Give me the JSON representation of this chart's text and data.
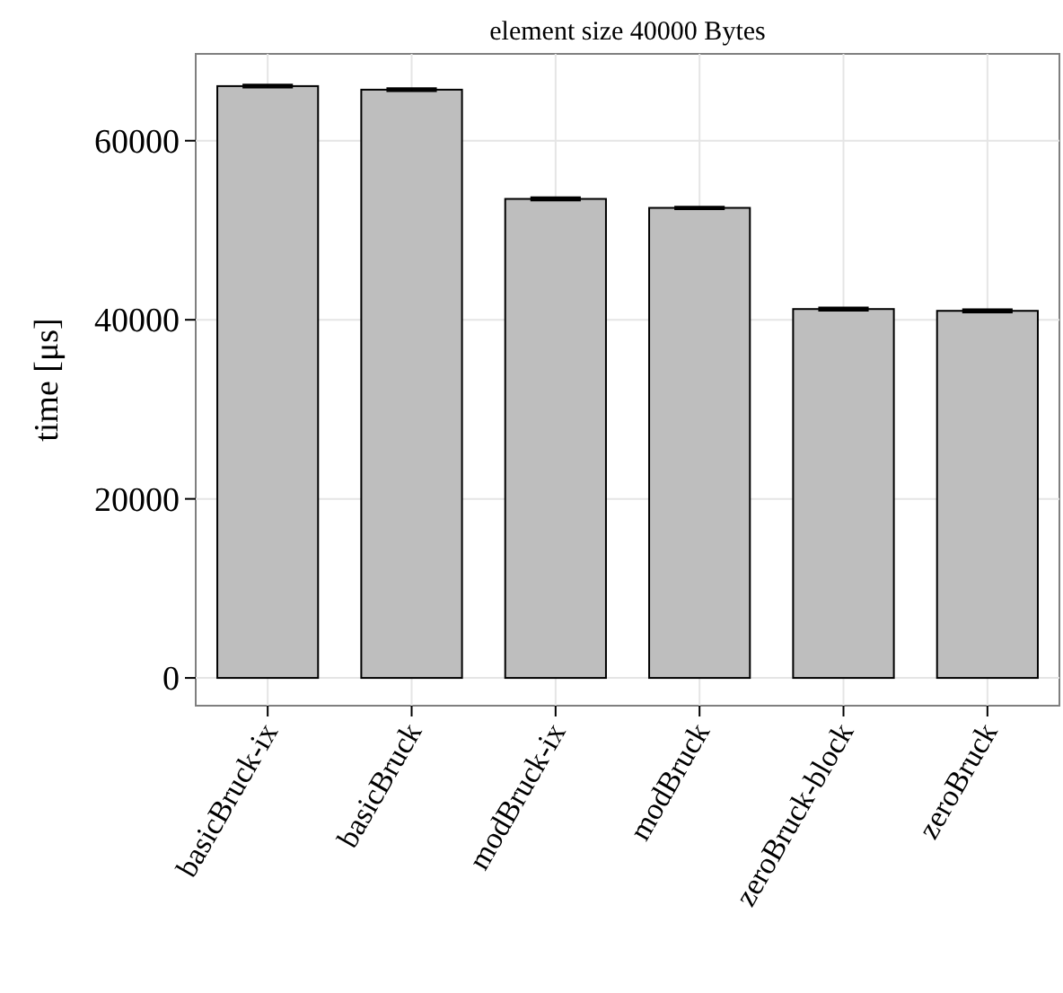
{
  "chart_data": {
    "type": "bar",
    "title": "element size 40000 Bytes",
    "ylabel": "time [μs]",
    "categories": [
      "basicBruck-ix",
      "basicBruck",
      "modBruck-ix",
      "modBruck",
      "zeroBruck-block",
      "zeroBruck"
    ],
    "values": [
      66100,
      65700,
      53500,
      52500,
      41200,
      41000
    ],
    "errors": [
      150,
      150,
      150,
      120,
      150,
      150
    ],
    "color": "#bebebe",
    "ylim": [
      -3100,
      69700
    ],
    "yticks": [
      0,
      20000,
      40000,
      60000
    ],
    "grid": true
  }
}
